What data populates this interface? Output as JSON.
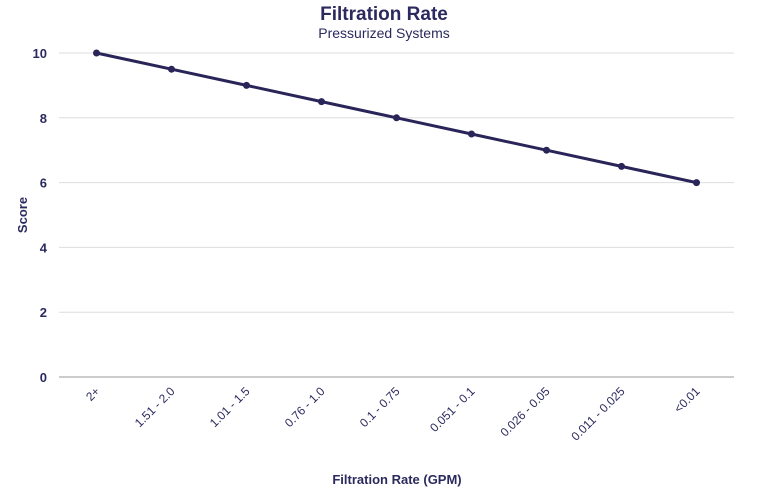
{
  "chart_data": {
    "type": "line",
    "title": "Filtration Rate",
    "subtitle": "Pressurized Systems",
    "xlabel": "Filtration Rate (GPM)",
    "ylabel": "Score",
    "categories": [
      "2+",
      "1.51 - 2.0",
      "1.01 - 1.5",
      "0.76 - 1.0",
      "0.1 - 0.75",
      "0.051 - 0.1",
      "0.026 - 0.05",
      "0.011 - 0.025",
      "<0.01"
    ],
    "values": [
      10,
      9.5,
      9,
      8.5,
      8,
      7.5,
      7,
      6.5,
      6
    ],
    "ylim": [
      0,
      10
    ],
    "yticks": [
      0,
      2,
      4,
      6,
      8,
      10
    ],
    "grid": true,
    "legend": "none",
    "color": "#2a2558"
  }
}
